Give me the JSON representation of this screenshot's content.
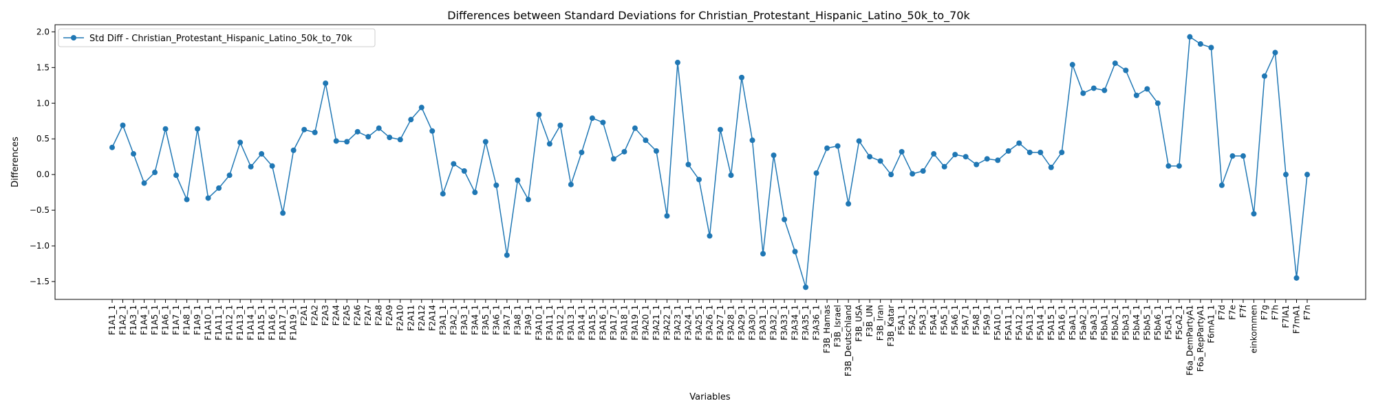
{
  "chart_data": {
    "type": "line",
    "title": "Differences between Standard Deviations for Christian_Protestant_Hispanic_Latino_50k_to_70k",
    "xlabel": "Variables",
    "ylabel": "Differences",
    "ylim": [
      -1.75,
      2.1
    ],
    "yticks": [
      -1.5,
      -1.0,
      -0.5,
      0.0,
      0.5,
      1.0,
      1.5,
      2.0
    ],
    "ytick_labels": [
      "−1.5",
      "−1.0",
      "−0.5",
      "0.0",
      "0.5",
      "1.0",
      "1.5",
      "2.0"
    ],
    "grid": false,
    "legend_position": "top-left",
    "line_color": "#1f77b4",
    "categories": [
      "F1A1_1",
      "F1A2_1",
      "F1A3_1",
      "F1A4_1",
      "F1A5_1",
      "F1A6_1",
      "F1A7_1",
      "F1A8_1",
      "F1A9_1",
      "F1A10_1",
      "F1A11_1",
      "F1A12_1",
      "F1A13_1",
      "F1A14_1",
      "F1A15_1",
      "F1A16_1",
      "F1A17_1",
      "F1A19_1",
      "F2A1",
      "F2A2",
      "F2A3",
      "F2A4",
      "F2A5",
      "F2A6",
      "F2A7",
      "F2A8",
      "F2A9",
      "F2A10",
      "F2A11",
      "F2A12",
      "F2A14",
      "F3A1_1",
      "F3A2_1",
      "F3A3_1",
      "F3A4_1",
      "F3A5_1",
      "F3A6_1",
      "F3A7_1",
      "F3A8_1",
      "F3A9_1",
      "F3A10_1",
      "F3A11_1",
      "F3A12_1",
      "F3A13_1",
      "F3A14_1",
      "F3A15_1",
      "F3A16_1",
      "F3A17_1",
      "F3A18_1",
      "F3A19_1",
      "F3A20_1",
      "F3A21_1",
      "F3A22_1",
      "F3A23_1",
      "F3A24_1",
      "F3A25_1",
      "F3A26_1",
      "F3A27_1",
      "F3A28_1",
      "F3A29_1",
      "F3A30_1",
      "F3A31_1",
      "F3A32_1",
      "F3A33_1",
      "F3A34_1",
      "F3A35_1",
      "F3A36_1",
      "F3B_Hamas",
      "F3B_Israel",
      "F3B_Deutschland",
      "F3B_USA",
      "F3B_UN",
      "F3B_Iran",
      "F3B_Katar",
      "F5A1_1",
      "F5A2_1",
      "F5A3_1",
      "F5A4_1",
      "F5A5_1",
      "F5A6_1",
      "F5A7_1",
      "F5A8_1",
      "F5A9_1",
      "F5A10_1",
      "F5A11_1",
      "F5A12_1",
      "F5A13_1",
      "F5A14_1",
      "F5A15_1",
      "F5A16_1",
      "F5aA1_1",
      "F5aA2_1",
      "F5aA3_1",
      "F5bA1_1",
      "F5bA2_1",
      "F5bA3_1",
      "F5bA4_1",
      "F5bA5_1",
      "F5bA6_1",
      "F5cA1_1",
      "F5cA2_1",
      "F6a_DemPartyA1",
      "F6a_RepPartyA1",
      "F6mA1_1",
      "F7d",
      "F7e",
      "F7f",
      "einkommen",
      "F7g",
      "F7h",
      "F7lA1",
      "F7mA1",
      "F7n"
    ],
    "series": [
      {
        "name": "Std Diff - Christian_Protestant_Hispanic_Latino_50k_to_70k",
        "values": [
          0.38,
          0.69,
          0.29,
          -0.12,
          0.03,
          0.64,
          -0.01,
          -0.35,
          0.64,
          -0.33,
          -0.19,
          -0.01,
          0.45,
          0.11,
          0.29,
          0.12,
          -0.54,
          0.34,
          0.63,
          0.59,
          1.28,
          0.47,
          0.46,
          0.6,
          0.53,
          0.65,
          0.52,
          0.49,
          0.77,
          0.94,
          0.61,
          -0.27,
          0.15,
          0.05,
          -0.25,
          0.46,
          -0.15,
          -1.13,
          -0.08,
          -0.35,
          0.84,
          0.43,
          0.69,
          -0.14,
          0.31,
          0.79,
          0.73,
          0.22,
          0.32,
          0.65,
          0.48,
          0.33,
          -0.58,
          1.57,
          0.14,
          -0.07,
          -0.86,
          0.63,
          -0.01,
          1.36,
          0.48,
          -1.11,
          0.27,
          -0.63,
          -1.08,
          -1.58,
          0.02,
          0.37,
          0.4,
          -0.41,
          0.47,
          0.25,
          0.19,
          0.0,
          0.32,
          0.01,
          0.05,
          0.29,
          0.11,
          0.28,
          0.25,
          0.14,
          0.22,
          0.2,
          0.33,
          0.44,
          0.31,
          0.31,
          0.1,
          0.31,
          1.54,
          1.14,
          1.21,
          1.18,
          1.56,
          1.46,
          1.11,
          1.2,
          1.0,
          0.12,
          0.12,
          1.93,
          1.83,
          1.78,
          -0.15,
          0.26,
          0.26,
          -0.55,
          1.38,
          1.71,
          0.0,
          -1.45,
          0.0
        ]
      }
    ]
  }
}
